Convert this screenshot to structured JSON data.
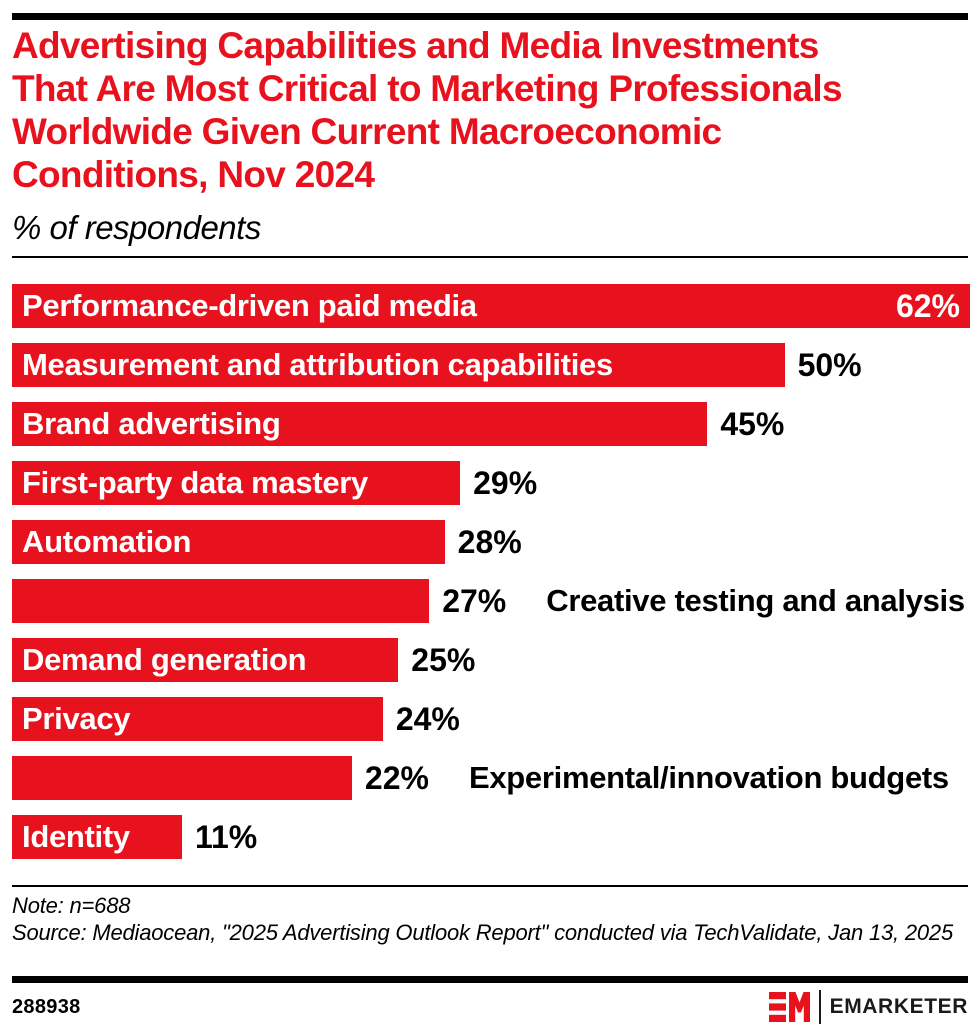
{
  "colors": {
    "accent_red": "#E7121D",
    "bar_text": "#ffffff",
    "text_black": "#000000",
    "rule_black": "#000000"
  },
  "header": {
    "title_lines": [
      "Advertising Capabilities and Media Investments",
      "That Are Most Critical to Marketing Professionals",
      "Worldwide Given Current Macroeconomic",
      "Conditions, Nov 2024"
    ],
    "subtitle": "% of respondents"
  },
  "chart_data": {
    "type": "bar",
    "orientation": "horizontal",
    "title": "Advertising Capabilities and Media Investments That Are Most Critical to Marketing Professionals Worldwide Given Current Macroeconomic Conditions, Nov 2024",
    "subtitle": "% of respondents",
    "unit": "% of respondents",
    "xlim": [
      0,
      62
    ],
    "grid": false,
    "legend": false,
    "bar_color": "#E7121D",
    "categories": [
      "Performance-driven paid media",
      "Measurement and attribution capabilities",
      "Brand advertising",
      "First-party data mastery",
      "Automation",
      "Creative testing and analysis",
      "Demand generation",
      "Privacy",
      "Experimental/innovation budgets",
      "Identity"
    ],
    "values": [
      62,
      50,
      45,
      29,
      28,
      27,
      25,
      24,
      22,
      11
    ],
    "value_labels": [
      "62%",
      "50%",
      "45%",
      "29%",
      "28%",
      "27%",
      "25%",
      "24%",
      "22%",
      "11%"
    ],
    "category_label_placement": [
      "inside",
      "inside",
      "inside",
      "inside",
      "inside",
      "outside",
      "inside",
      "inside",
      "outside",
      "inside"
    ],
    "value_label_placement": [
      "inside",
      "outside",
      "outside",
      "outside",
      "outside",
      "outside",
      "outside",
      "outside",
      "outside",
      "outside"
    ]
  },
  "footer": {
    "note": "Note: n=688",
    "source": "Source: Mediaocean, \"2025 Advertising Outlook Report\" conducted via TechValidate, Jan 13, 2025",
    "chart_id": "288938",
    "logo_text": "EMARKETER"
  }
}
